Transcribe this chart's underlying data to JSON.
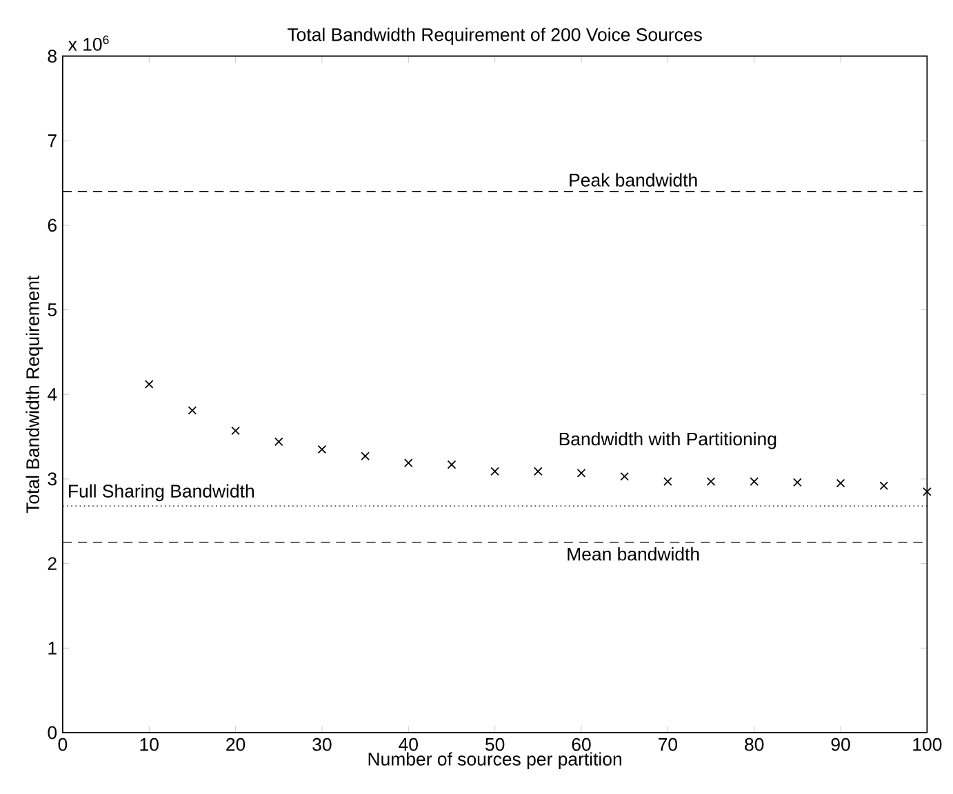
{
  "chart_data": {
    "type": "scatter",
    "title": "Total Bandwidth Requirement of 200 Voice Sources",
    "xlabel": "Number of sources per partition",
    "ylabel": "Total Bandwidth Requirement",
    "x": [
      10,
      15,
      20,
      25,
      30,
      35,
      40,
      45,
      50,
      55,
      60,
      65,
      70,
      75,
      80,
      85,
      90,
      95,
      100
    ],
    "series": [
      {
        "name": "Bandwidth with Partitioning",
        "color": "#000000",
        "values": [
          4.12,
          3.81,
          3.57,
          3.44,
          3.35,
          3.27,
          3.19,
          3.17,
          3.09,
          3.09,
          3.07,
          3.03,
          2.97,
          2.97,
          2.97,
          2.96,
          2.95,
          2.92,
          2.85
        ]
      }
    ],
    "marker": "cross",
    "legend": false,
    "grid": false,
    "xlim": [
      0,
      100
    ],
    "xticks": [
      0,
      10,
      20,
      30,
      40,
      50,
      60,
      70,
      80,
      90,
      100
    ],
    "ylim": [
      0,
      8
    ],
    "yticks": [
      0,
      1,
      2,
      3,
      4,
      5,
      6,
      7,
      8
    ],
    "ref_lines": [
      {
        "axis": "y",
        "value": 6.4,
        "label": "Peak bandwidth",
        "line_style": "dashed",
        "color": "#000000"
      },
      {
        "axis": "y",
        "value": 2.68,
        "label": "Full Sharing Bandwidth",
        "line_style": "dotted",
        "color": "#000000"
      },
      {
        "axis": "y",
        "value": 2.25,
        "label": "Mean bandwidth",
        "line_style": "dashed",
        "color": "#000000"
      }
    ],
    "annotations": [
      "x 10$^{6}$"
    ]
  }
}
